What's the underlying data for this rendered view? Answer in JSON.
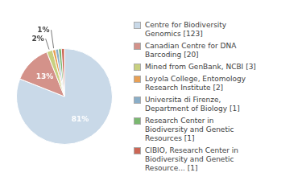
{
  "chart_data": {
    "type": "pie",
    "categories": [
      "Centre for Biodiversity\nGenomics [123]",
      "Canadian Centre for DNA\nBarcoding [20]",
      "Mined from GenBank, NCBI [3]",
      "Loyola College, Entomology\nResearch Institute [2]",
      "Universita di Firenze,\nDepartment of Biology [1]",
      "Research Center in\nBiodiversity and Genetic\nResources [1]",
      "CIBIO, Research Center in\nBiodiversity and Genetic\nResource... [1]"
    ],
    "values": [
      81,
      13,
      2,
      1,
      1,
      1,
      1
    ],
    "value_labels": [
      "81%",
      "13%",
      "2%",
      "1%",
      null,
      null,
      null
    ],
    "colors": [
      "#c9d9e8",
      "#d4928a",
      "#c8d080",
      "#e8a055",
      "#8aaec8",
      "#7ab870",
      "#cc6655"
    ],
    "data_labels": true,
    "legend": "right"
  }
}
